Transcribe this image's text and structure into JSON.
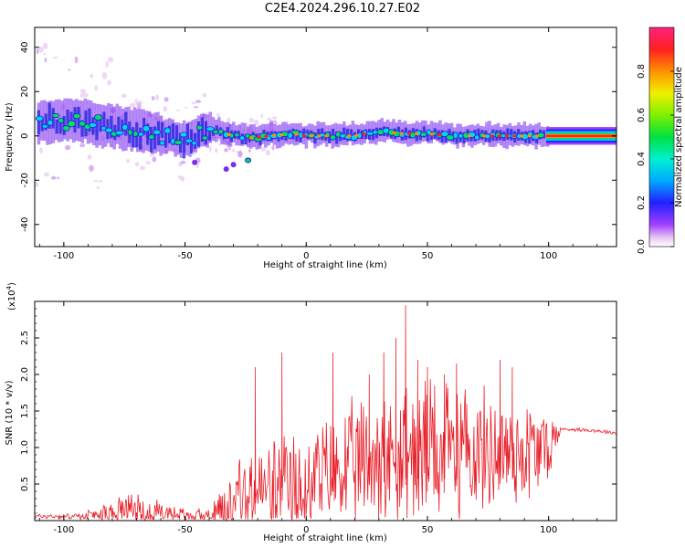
{
  "title": "C2E4.2024.296.10.27.E02",
  "colors": {
    "snr_line": "#e8202a",
    "axis": "#000000"
  },
  "chart_data": [
    {
      "type": "heatmap",
      "xlabel": "Height of straight line (km)",
      "ylabel": "Frequency (Hz)",
      "xlim": [
        -112,
        128
      ],
      "ylim": [
        -50,
        49
      ],
      "xticks": [
        -100,
        -50,
        0,
        50,
        100
      ],
      "xtick_labels": [
        "-100",
        "-50",
        "0",
        "50",
        "100"
      ],
      "yticks": [
        40,
        20,
        0,
        -20,
        -40
      ],
      "ytick_labels": [
        "40",
        "20",
        "0",
        "-20",
        "-40"
      ],
      "colorbar": {
        "label": "Normalized spectral amplitude",
        "range": [
          0,
          1
        ],
        "ticks": [
          0.0,
          0.2,
          0.4,
          0.6,
          0.8
        ],
        "tick_labels": [
          "0.0",
          "0.2",
          "0.4",
          "0.6",
          "0.8"
        ],
        "colormap": "rainbow"
      },
      "ridge": {
        "x": [
          -110,
          -100,
          -90,
          -80,
          -70,
          -60,
          -50,
          -40,
          -30,
          -22,
          -15,
          -5,
          0,
          10,
          20,
          30,
          40,
          50,
          60,
          70,
          80,
          90,
          100,
          128
        ],
        "y": [
          6,
          7,
          6,
          4,
          2,
          0,
          -2,
          3,
          0,
          -1,
          0,
          1,
          0,
          0,
          0,
          2,
          1,
          1,
          0,
          0,
          0,
          0,
          0,
          0
        ]
      }
    },
    {
      "type": "line",
      "xlabel": "Height of straight line (km)",
      "ylabel": "SNR (10 * v/v)",
      "y_multiplier_label": "(x10",
      "y_multiplier_exp": "4",
      "y_multiplier_close": ")",
      "xlim": [
        -112,
        128
      ],
      "ylim": [
        0,
        3.0
      ],
      "xticks": [
        -100,
        -50,
        0,
        50,
        100
      ],
      "xtick_labels": [
        "-100",
        "-50",
        "0",
        "50",
        "100"
      ],
      "yticks": [
        0.5,
        1.0,
        1.5,
        2.0,
        2.5
      ],
      "ytick_labels": [
        "0.5",
        "1.0",
        "1.5",
        "2.0",
        "2.5"
      ],
      "envelope": {
        "x": [
          -112,
          -95,
          -85,
          -78,
          -72,
          -65,
          -58,
          -52,
          -47,
          -40,
          -35,
          -30,
          -25,
          -20,
          -15,
          -10,
          -5,
          0,
          5,
          10,
          15,
          20,
          25,
          30,
          35,
          40,
          45,
          50,
          55,
          60,
          65,
          70,
          75,
          80,
          85,
          90,
          95,
          100,
          105,
          110,
          120,
          128
        ],
        "base": [
          0.06,
          0.06,
          0.08,
          0.12,
          0.15,
          0.12,
          0.1,
          0.08,
          0.06,
          0.08,
          0.2,
          0.3,
          0.35,
          0.4,
          0.42,
          0.45,
          0.5,
          0.55,
          0.6,
          0.65,
          0.7,
          0.75,
          0.8,
          0.85,
          0.9,
          0.95,
          0.95,
          0.95,
          0.95,
          0.95,
          0.95,
          0.95,
          0.95,
          0.95,
          0.95,
          0.95,
          0.95,
          1.0,
          1.25,
          1.25,
          1.23,
          1.2
        ],
        "amplitude": [
          0.04,
          0.05,
          0.1,
          0.25,
          0.28,
          0.25,
          0.18,
          0.12,
          0.1,
          0.15,
          0.4,
          0.55,
          0.65,
          0.7,
          0.7,
          0.75,
          0.8,
          0.85,
          0.85,
          0.9,
          0.95,
          1.0,
          1.05,
          1.1,
          1.15,
          1.2,
          1.2,
          1.15,
          1.1,
          1.05,
          1.0,
          1.0,
          0.95,
          0.95,
          0.9,
          0.9,
          0.85,
          0.6,
          0.03,
          0.03,
          0.03,
          0.03
        ]
      },
      "peaks": [
        {
          "x": -21,
          "y": 2.1
        },
        {
          "x": -10,
          "y": 2.3
        },
        {
          "x": 11,
          "y": 2.3
        },
        {
          "x": 26,
          "y": 2.0
        },
        {
          "x": 32,
          "y": 2.3
        },
        {
          "x": 37,
          "y": 2.5
        },
        {
          "x": 41,
          "y": 2.95
        },
        {
          "x": 46,
          "y": 2.2
        },
        {
          "x": 50,
          "y": 2.1
        },
        {
          "x": 57,
          "y": 2.0
        },
        {
          "x": 62,
          "y": 2.15
        },
        {
          "x": 80,
          "y": 2.2
        },
        {
          "x": 85,
          "y": 2.1
        }
      ],
      "series": [
        {
          "name": "",
          "color": "#e8202a"
        }
      ]
    }
  ]
}
